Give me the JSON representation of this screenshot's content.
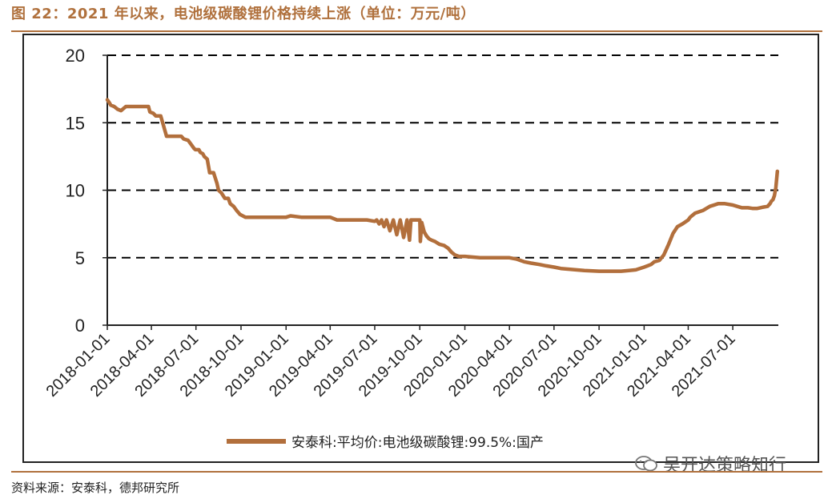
{
  "figure": {
    "title": "图 22：2021 年以来，电池级碳酸锂价格持续上涨（单位：万元/吨）",
    "source": "资料来源：安泰科，德邦研究所",
    "watermark": "吴开达策略知行"
  },
  "colors": {
    "accent": "#b0713d",
    "series": "#b26f3c",
    "axis": "#222222",
    "grid": "#000000"
  },
  "chart_data": {
    "type": "line",
    "xlabel": "",
    "ylabel": "",
    "ylim": [
      0,
      20
    ],
    "yticks": [
      0,
      5,
      10,
      15,
      20
    ],
    "xlim": [
      "2018-01-01",
      "2021-10-02"
    ],
    "xticks": [
      "2018-01-01",
      "2018-04-01",
      "2018-07-01",
      "2018-10-01",
      "2019-01-01",
      "2019-04-01",
      "2019-07-01",
      "2019-10-01",
      "2020-01-01",
      "2020-04-01",
      "2020-07-01",
      "2020-10-01",
      "2021-01-01",
      "2021-04-01",
      "2021-07-01"
    ],
    "grid": "horizontal dashed",
    "legend_position": "bottom",
    "series": [
      {
        "name": "安泰科:平均价:电池级碳酸锂:99.5%:国产",
        "x": [
          "2018-01-01",
          "2018-01-05",
          "2018-01-08",
          "2018-01-15",
          "2018-01-22",
          "2018-01-29",
          "2018-02-08",
          "2018-02-28",
          "2018-03-12",
          "2018-03-16",
          "2018-03-26",
          "2018-03-29",
          "2018-04-05",
          "2018-04-10",
          "2018-04-20",
          "2018-05-02",
          "2018-05-12",
          "2018-05-20",
          "2018-05-25",
          "2018-06-01",
          "2018-06-06",
          "2018-06-15",
          "2018-06-21",
          "2018-06-27",
          "2018-06-30",
          "2018-07-07",
          "2018-07-10",
          "2018-07-15",
          "2018-07-18",
          "2018-07-24",
          "2018-07-29",
          "2018-08-06",
          "2018-08-13",
          "2018-08-16",
          "2018-08-22",
          "2018-08-29",
          "2018-09-05",
          "2018-09-09",
          "2018-09-16",
          "2018-09-22",
          "2018-09-29",
          "2018-10-10",
          "2018-11-01",
          "2018-12-01",
          "2019-01-01",
          "2019-01-10",
          "2019-02-01",
          "2019-03-01",
          "2019-04-01",
          "2019-04-15",
          "2019-05-01",
          "2019-06-01",
          "2019-06-15",
          "2019-07-01",
          "2019-07-05",
          "2019-07-10",
          "2019-07-15",
          "2019-07-20",
          "2019-07-25",
          "2019-08-01",
          "2019-08-08",
          "2019-08-15",
          "2019-08-22",
          "2019-08-29",
          "2019-09-05",
          "2019-09-10",
          "2019-09-13",
          "2019-09-20",
          "2019-09-26",
          "2019-10-01",
          "2019-10-02",
          "2019-10-05",
          "2019-10-10",
          "2019-10-15",
          "2019-10-20",
          "2019-10-25",
          "2019-11-01",
          "2019-11-10",
          "2019-11-20",
          "2019-11-28",
          "2019-12-05",
          "2019-12-12",
          "2019-12-20",
          "2020-01-01",
          "2020-02-01",
          "2020-03-01",
          "2020-03-16",
          "2020-04-01",
          "2020-04-15",
          "2020-05-01",
          "2020-05-15",
          "2020-06-01",
          "2020-06-15",
          "2020-07-01",
          "2020-07-15",
          "2020-08-01",
          "2020-08-15",
          "2020-09-01",
          "2020-10-01",
          "2020-10-15",
          "2020-11-01",
          "2020-11-15",
          "2020-12-01",
          "2020-12-15",
          "2021-01-01",
          "2021-01-08",
          "2021-01-15",
          "2021-01-22",
          "2021-02-01",
          "2021-02-10",
          "2021-02-20",
          "2021-03-01",
          "2021-03-10",
          "2021-03-20",
          "2021-04-01",
          "2021-04-05",
          "2021-04-15",
          "2021-05-01",
          "2021-05-15",
          "2021-06-01",
          "2021-06-15",
          "2021-07-01",
          "2021-07-10",
          "2021-07-20",
          "2021-08-01",
          "2021-08-10",
          "2021-08-20",
          "2021-08-26",
          "2021-09-01",
          "2021-09-10",
          "2021-09-15",
          "2021-09-18",
          "2021-09-21",
          "2021-09-24",
          "2021-09-27",
          "2021-09-30"
        ],
        "y": [
          16.7,
          16.5,
          16.3,
          16.2,
          16.0,
          15.9,
          16.2,
          16.2,
          16.2,
          16.2,
          16.2,
          15.8,
          15.7,
          15.5,
          15.5,
          14.0,
          14.0,
          14.0,
          14.0,
          14.0,
          13.8,
          13.7,
          13.4,
          13.1,
          13.0,
          13.0,
          12.8,
          12.7,
          12.5,
          12.3,
          11.3,
          11.3,
          10.5,
          10.0,
          9.8,
          9.4,
          9.4,
          9.0,
          8.8,
          8.5,
          8.2,
          8.0,
          8.0,
          8.0,
          8.0,
          8.1,
          8.0,
          8.0,
          8.0,
          7.8,
          7.8,
          7.8,
          7.8,
          7.7,
          7.8,
          7.5,
          7.8,
          7.3,
          7.8,
          7.0,
          7.8,
          6.7,
          7.8,
          6.5,
          7.8,
          6.3,
          7.8,
          7.8,
          7.8,
          7.8,
          6.2,
          7.6,
          6.9,
          6.6,
          6.4,
          6.3,
          6.2,
          6.0,
          5.9,
          5.7,
          5.4,
          5.2,
          5.1,
          5.1,
          5.0,
          5.0,
          5.0,
          5.0,
          4.9,
          4.7,
          4.6,
          4.5,
          4.4,
          4.3,
          4.2,
          4.15,
          4.1,
          4.05,
          4.0,
          4.0,
          4.0,
          4.0,
          4.05,
          4.1,
          4.3,
          4.4,
          4.5,
          4.7,
          4.8,
          5.2,
          6.0,
          6.8,
          7.3,
          7.5,
          7.8,
          8.0,
          8.3,
          8.5,
          8.8,
          9.0,
          9.0,
          8.9,
          8.8,
          8.7,
          8.7,
          8.65,
          8.65,
          8.7,
          8.75,
          8.8,
          9.0,
          9.2,
          9.3,
          9.6,
          10.2,
          11.4
        ]
      }
    ]
  }
}
